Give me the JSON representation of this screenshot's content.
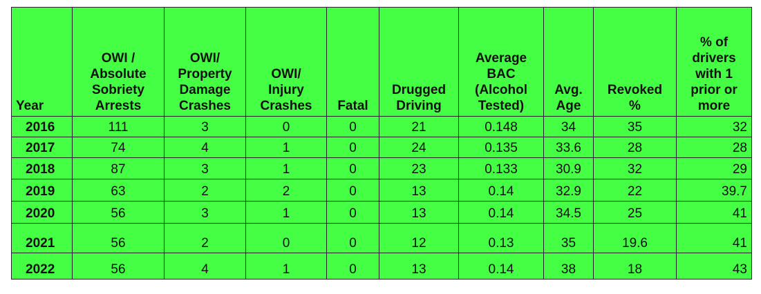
{
  "table": {
    "headers": [
      "Year",
      "OWI /\nAbsolute\nSobriety\nArrests",
      "OWI/\nProperty\nDamage\nCrashes",
      "OWI/\nInjury\nCrashes",
      "Fatal",
      "Drugged\nDriving",
      "Average\nBAC\n(Alcohol\nTested)",
      "Avg.\nAge",
      "Revoked\n%",
      "% of\ndrivers\nwith 1\nprior or\nmore"
    ],
    "rows": [
      [
        "2016",
        "111",
        "3",
        "0",
        "0",
        "21",
        "0.148",
        "34",
        "35",
        "32"
      ],
      [
        "2017",
        "74",
        "4",
        "1",
        "0",
        "24",
        "0.135",
        "33.6",
        "28",
        "28"
      ],
      [
        "2018",
        "87",
        "3",
        "1",
        "0",
        "23",
        "0.133",
        "30.9",
        "32",
        "29"
      ],
      [
        "2019",
        "63",
        "2",
        "2",
        "0",
        "13",
        "0.14",
        "32.9",
        "22",
        "39.7"
      ],
      [
        "2020",
        "56",
        "3",
        "1",
        "0",
        "13",
        "0.14",
        "34.5",
        "25",
        "41"
      ],
      [
        "2021",
        "56",
        "2",
        "0",
        "0",
        "12",
        "0.13",
        "35",
        "19.6",
        "41"
      ],
      [
        "2022",
        "56",
        "4",
        "1",
        "0",
        "13",
        "0.14",
        "38",
        "18",
        "43"
      ]
    ]
  }
}
